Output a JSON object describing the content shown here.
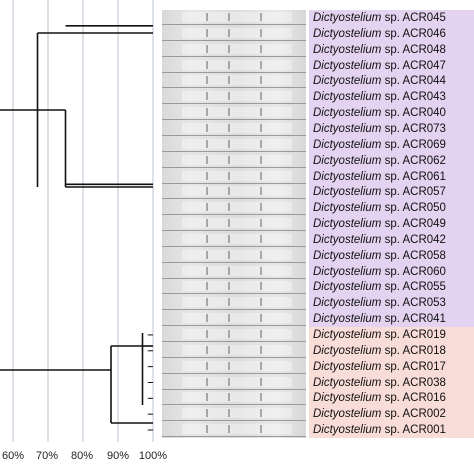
{
  "axis": {
    "ticks": [
      "60%",
      "70%",
      "80%",
      "90%",
      "100%"
    ]
  },
  "strains": [
    {
      "genus": "Dictyostelium",
      "rest": " sp. ACR045",
      "group": "purple"
    },
    {
      "genus": "Dictyostelium",
      "rest": " sp. ACR046",
      "group": "purple"
    },
    {
      "genus": "Dictyostelium",
      "rest": " sp. ACR048",
      "group": "purple"
    },
    {
      "genus": "Dictyostelium",
      "rest": " sp. ACR047",
      "group": "purple"
    },
    {
      "genus": "Dictyostelium",
      "rest": " sp. ACR044",
      "group": "purple"
    },
    {
      "genus": "Dictyostelium",
      "rest": " sp. ACR043",
      "group": "purple"
    },
    {
      "genus": "Dictyostelium",
      "rest": " sp. ACR040",
      "group": "purple"
    },
    {
      "genus": "Dictyostelium",
      "rest": " sp. ACR073",
      "group": "purple"
    },
    {
      "genus": "Dictyostelium",
      "rest": " sp. ACR069",
      "group": "purple"
    },
    {
      "genus": "Dictyostelium",
      "rest": " sp. ACR062",
      "group": "purple"
    },
    {
      "genus": "Dictyostelium",
      "rest": " sp. ACR061",
      "group": "purple"
    },
    {
      "genus": "Dictyostelium",
      "rest": " sp. ACR057",
      "group": "purple"
    },
    {
      "genus": "Dictyostelium",
      "rest": " sp. ACR050",
      "group": "purple"
    },
    {
      "genus": "Dictyostelium",
      "rest": " sp. ACR049",
      "group": "purple"
    },
    {
      "genus": "Dictyostelium",
      "rest": " sp. ACR042",
      "group": "purple"
    },
    {
      "genus": "Dictyostelium",
      "rest": " sp. ACR058",
      "group": "purple"
    },
    {
      "genus": "Dictyostelium",
      "rest": " sp. ACR060",
      "group": "purple"
    },
    {
      "genus": "Dictyostelium",
      "rest": " sp. ACR055",
      "group": "purple"
    },
    {
      "genus": "Dictyostelium",
      "rest": " sp. ACR053",
      "group": "purple"
    },
    {
      "genus": "Dictyostelium",
      "rest": " sp. ACR041",
      "group": "purple"
    },
    {
      "genus": "Dictyostelium",
      "rest": " sp. ACR019",
      "group": "pink"
    },
    {
      "genus": "Dictyostelium",
      "rest": " sp. ACR018",
      "group": "pink"
    },
    {
      "genus": "Dictyostelium",
      "rest": " sp. ACR017",
      "group": "pink"
    },
    {
      "genus": "Dictyostelium",
      "rest": " sp. ACR038",
      "group": "pink"
    },
    {
      "genus": "Dictyostelium",
      "rest": " sp. ACR016",
      "group": "pink"
    },
    {
      "genus": "Dictyostelium",
      "rest": " sp. ACR002",
      "group": "pink"
    },
    {
      "genus": "Dictyostelium",
      "rest": " sp. ACR001",
      "group": "pink"
    }
  ],
  "colors": {
    "purple_group": "#e3d3f0",
    "pink_group": "#f8dcd7",
    "tree_line": "#111111",
    "grid_line": "#b9c6cf"
  },
  "similarity_scale": {
    "axis_min": 55,
    "axis_max": 100,
    "purple_clade_root": 67,
    "purple_subclade_a": 75,
    "pink_clade_root": 88,
    "pink_subclade": 97
  }
}
